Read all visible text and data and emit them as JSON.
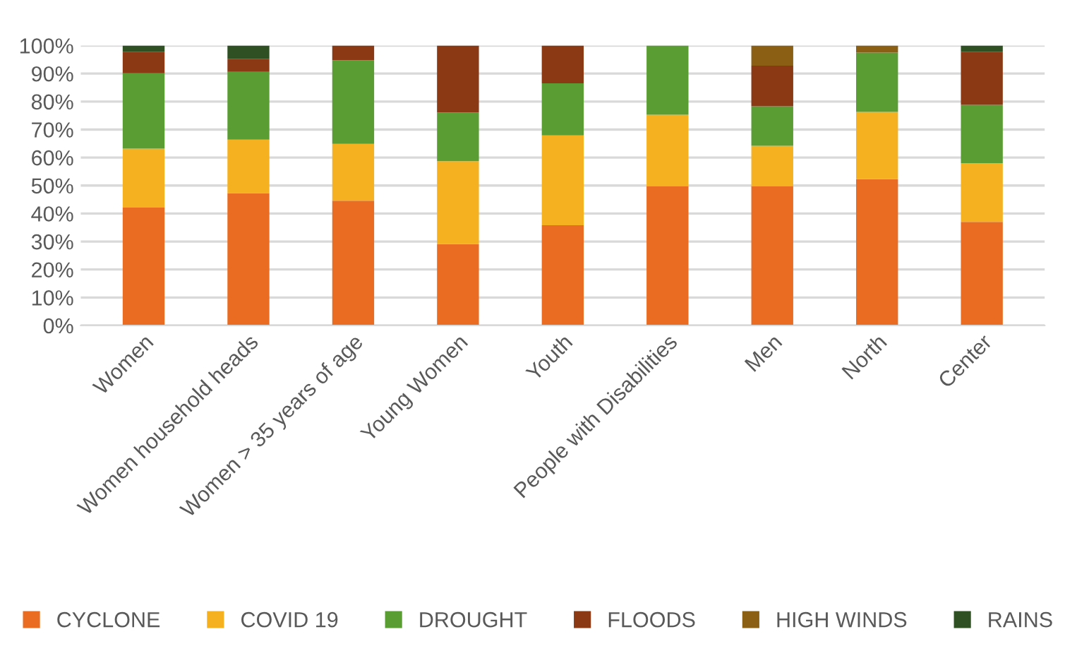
{
  "chart_data": {
    "type": "bar",
    "stacked": true,
    "categories": [
      "Women",
      "Women household heads",
      "Women > 35 years of age",
      "Young Women",
      "Youth",
      "People with Disabilities",
      "Men",
      "North",
      "Center"
    ],
    "series": [
      {
        "name": "CYCLONE",
        "color": "#e96c22",
        "values": [
          42.1,
          47.3,
          44.6,
          29.1,
          35.8,
          49.8,
          49.8,
          52.3,
          37.0
        ]
      },
      {
        "name": "COVID 19",
        "color": "#f5b120",
        "values": [
          21.1,
          19.1,
          20.3,
          29.6,
          32.1,
          25.5,
          14.4,
          24.0,
          21.0
        ]
      },
      {
        "name": "DROUGHT",
        "color": "#5a9e33",
        "values": [
          26.9,
          24.2,
          29.9,
          17.4,
          18.6,
          24.7,
          14.1,
          21.2,
          20.8
        ]
      },
      {
        "name": "FLOODS",
        "color": "#8b3915",
        "values": [
          7.7,
          4.7,
          5.2,
          23.9,
          13.5,
          0,
          14.5,
          0,
          19.0
        ]
      },
      {
        "name": "HIGH WINDS",
        "color": "#8b6014",
        "values": [
          0,
          0,
          0,
          0,
          0,
          0,
          7.2,
          2.5,
          0
        ]
      },
      {
        "name": "RAINS",
        "color": "#2f5023",
        "values": [
          2.2,
          4.7,
          0,
          0,
          0,
          0,
          0,
          0,
          2.2
        ]
      }
    ],
    "ylim": [
      0,
      100
    ],
    "yticks": [
      {
        "value": 0,
        "label": "0%"
      },
      {
        "value": 10,
        "label": "10%"
      },
      {
        "value": 20,
        "label": "20%"
      },
      {
        "value": 30,
        "label": "30%"
      },
      {
        "value": 40,
        "label": "40%"
      },
      {
        "value": 50,
        "label": "50%"
      },
      {
        "value": 60,
        "label": "60%"
      },
      {
        "value": 70,
        "label": "70%"
      },
      {
        "value": 80,
        "label": "80%"
      },
      {
        "value": 90,
        "label": "90%"
      },
      {
        "value": 100,
        "label": "100%"
      }
    ],
    "grid": "y",
    "legend": "bottom"
  }
}
